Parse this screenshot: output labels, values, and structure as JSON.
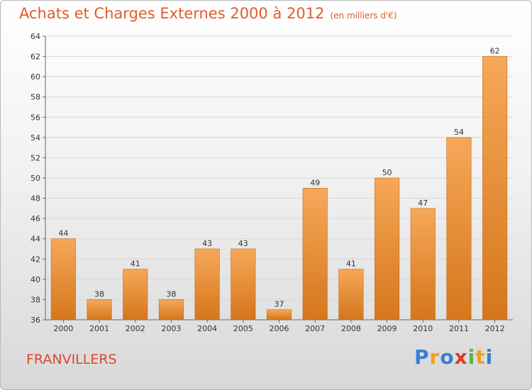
{
  "header": {
    "title": "Achats et Charges Externes 2000 à 2012",
    "subtitle": "(en milliers d'€)"
  },
  "footer": {
    "commune": "FRANVILLERS",
    "logo_letters": [
      {
        "ch": "P",
        "color": "#3a7fd0"
      },
      {
        "ch": "r",
        "color": "#f0a020"
      },
      {
        "ch": "o",
        "color": "#3a7fd0"
      },
      {
        "ch": "x",
        "color": "#e03a2a"
      },
      {
        "ch": "i",
        "color": "#5ab540"
      },
      {
        "ch": "t",
        "color": "#f0a020"
      },
      {
        "ch": "i",
        "color": "#3a7fd0"
      }
    ]
  },
  "colors": {
    "bar_top": "#f6a858",
    "bar_bottom": "#d5761c",
    "bar_edge": "#c86a16",
    "title": "#e05c2a"
  },
  "chart_data": {
    "type": "bar",
    "title": "Achats et Charges Externes 2000 à 2012",
    "subtitle": "(en milliers d'€)",
    "categories": [
      "2000",
      "2001",
      "2002",
      "2003",
      "2004",
      "2005",
      "2006",
      "2007",
      "2008",
      "2009",
      "2010",
      "2011",
      "2012"
    ],
    "values": [
      44,
      38,
      41,
      38,
      43,
      43,
      37,
      49,
      41,
      50,
      47,
      54,
      62
    ],
    "ylim": [
      36,
      64
    ],
    "yticks": [
      36,
      38,
      40,
      42,
      44,
      46,
      48,
      50,
      52,
      54,
      56,
      58,
      60,
      62,
      64
    ],
    "grid": true,
    "xlabel": "",
    "ylabel": ""
  }
}
